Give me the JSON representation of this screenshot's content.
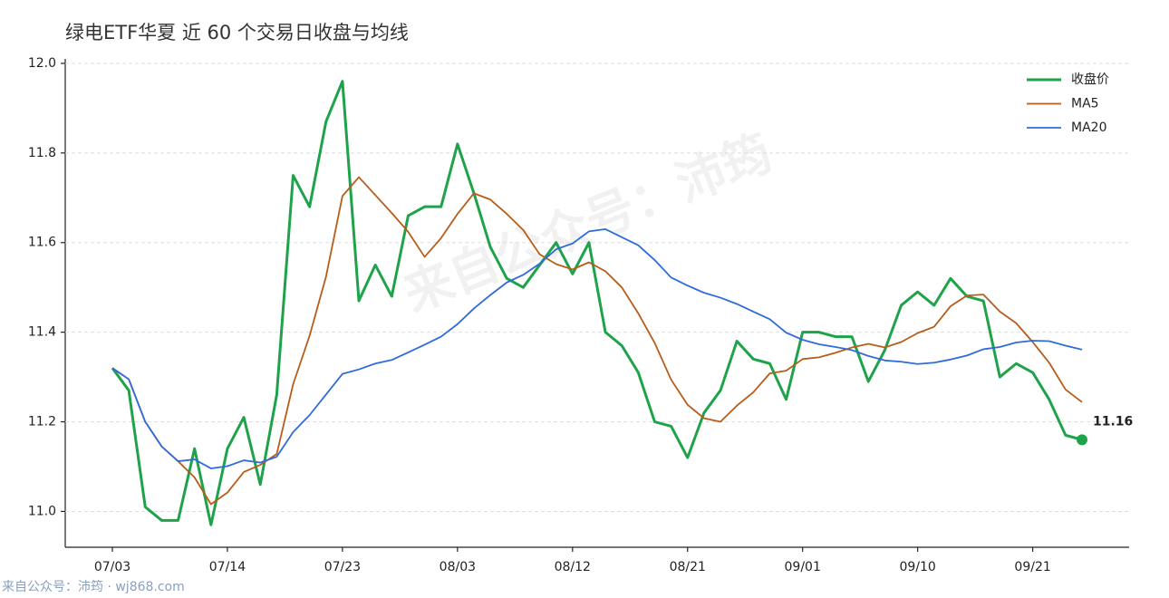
{
  "chart_data": {
    "type": "line",
    "title": "绿电ETF华夏 近 60 个交易日收盘与均线",
    "watermark": "来自公众号：沛筠",
    "footer": "来自公众号：沛筠 · wj868.com",
    "categories": [
      "07/03",
      null,
      null,
      null,
      null,
      null,
      null,
      "07/14",
      null,
      null,
      null,
      null,
      null,
      null,
      "07/23",
      null,
      null,
      null,
      null,
      null,
      null,
      "08/03",
      null,
      null,
      null,
      null,
      null,
      null,
      "08/12",
      null,
      null,
      null,
      null,
      null,
      null,
      "08/21",
      null,
      null,
      null,
      null,
      null,
      null,
      "09/01",
      null,
      null,
      null,
      null,
      null,
      null,
      "09/10",
      null,
      null,
      null,
      null,
      null,
      null,
      "09/21",
      null,
      null,
      null
    ],
    "series": [
      {
        "name": "收盘价",
        "color": "#1fa34a",
        "values": [
          11.32,
          11.27,
          11.01,
          10.98,
          10.98,
          11.14,
          10.97,
          11.14,
          11.21,
          11.06,
          11.26,
          11.75,
          11.68,
          11.87,
          11.96,
          11.47,
          11.55,
          11.48,
          11.66,
          11.68,
          11.68,
          11.82,
          11.71,
          11.59,
          11.52,
          11.5,
          11.55,
          11.6,
          11.53,
          11.6,
          11.4,
          11.37,
          11.31,
          11.2,
          11.19,
          11.12,
          11.22,
          11.27,
          11.38,
          11.34,
          11.33,
          11.25,
          11.4,
          11.4,
          11.39,
          11.39,
          11.29,
          11.36,
          11.46,
          11.49,
          11.46,
          11.52,
          11.48,
          11.47,
          11.3,
          11.33,
          11.31,
          11.25,
          11.17,
          11.16
        ]
      },
      {
        "name": "MA5",
        "color": "#b85c1a",
        "values": [
          11.32,
          11.295,
          11.2,
          11.145,
          11.112,
          11.076,
          11.016,
          11.042,
          11.088,
          11.104,
          11.128,
          11.284,
          11.392,
          11.524,
          11.704,
          11.746,
          11.706,
          11.666,
          11.624,
          11.568,
          11.61,
          11.664,
          11.71,
          11.696,
          11.664,
          11.628,
          11.574,
          11.552,
          11.54,
          11.556,
          11.536,
          11.5,
          11.442,
          11.376,
          11.294,
          11.238,
          11.208,
          11.2,
          11.236,
          11.266,
          11.308,
          11.314,
          11.34,
          11.344,
          11.354,
          11.366,
          11.374,
          11.366,
          11.378,
          11.398,
          11.412,
          11.458,
          11.482,
          11.484,
          11.446,
          11.42,
          11.378,
          11.332,
          11.272,
          11.244
        ]
      },
      {
        "name": "MA20",
        "color": "#2f6bdb",
        "values": [
          11.32,
          11.295,
          11.2,
          11.145,
          11.112,
          11.116,
          11.096,
          11.101,
          11.114,
          11.109,
          11.122,
          11.177,
          11.215,
          11.261,
          11.307,
          11.317,
          11.33,
          11.338,
          11.355,
          11.372,
          11.39,
          11.418,
          11.453,
          11.483,
          11.511,
          11.528,
          11.553,
          11.585,
          11.598,
          11.625,
          11.63,
          11.612,
          11.594,
          11.561,
          11.522,
          11.504,
          11.488,
          11.477,
          11.463,
          11.446,
          11.429,
          11.399,
          11.383,
          11.373,
          11.367,
          11.36,
          11.347,
          11.337,
          11.334,
          11.329,
          11.332,
          11.339,
          11.348,
          11.362,
          11.367,
          11.377,
          11.381,
          11.38,
          11.37,
          11.361
        ]
      }
    ],
    "ylim": [
      10.92,
      12.01
    ],
    "yticks": [
      {
        "value": 11,
        "label": "11.0"
      },
      {
        "value": 11.2,
        "label": "11.2"
      },
      {
        "value": 11.4,
        "label": "11.4"
      },
      {
        "value": 11.6,
        "label": "11.6"
      },
      {
        "value": 11.8,
        "label": "11.8"
      },
      {
        "value": 12,
        "label": "12.0"
      }
    ],
    "grid": true,
    "legend": "upper right"
  }
}
